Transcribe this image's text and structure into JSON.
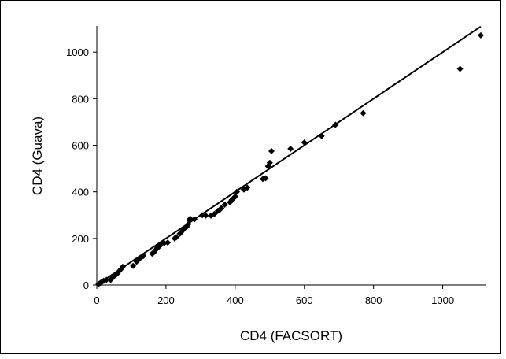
{
  "chart_data": {
    "type": "scatter",
    "title": "",
    "xlabel": "CD4 (FACSORT)",
    "ylabel": "CD4 (Guava)",
    "xlim": [
      0,
      1120
    ],
    "ylim": [
      0,
      1120
    ],
    "x_ticks": [
      0,
      200,
      400,
      600,
      800,
      1000
    ],
    "y_ticks": [
      0,
      200,
      400,
      600,
      800,
      1000
    ],
    "grid": false,
    "legend": "none",
    "series": [
      {
        "kind": "points",
        "color": "#000000",
        "marker": "diamond",
        "points": [
          [
            5,
            4
          ],
          [
            10,
            9
          ],
          [
            15,
            14
          ],
          [
            20,
            18
          ],
          [
            28,
            22
          ],
          [
            40,
            22
          ],
          [
            45,
            30
          ],
          [
            50,
            38
          ],
          [
            55,
            44
          ],
          [
            60,
            50
          ],
          [
            65,
            60
          ],
          [
            70,
            68
          ],
          [
            75,
            78
          ],
          [
            105,
            82
          ],
          [
            115,
            100
          ],
          [
            120,
            108
          ],
          [
            125,
            115
          ],
          [
            130,
            120
          ],
          [
            135,
            125
          ],
          [
            160,
            135
          ],
          [
            165,
            140
          ],
          [
            170,
            150
          ],
          [
            175,
            160
          ],
          [
            180,
            165
          ],
          [
            185,
            175
          ],
          [
            195,
            180
          ],
          [
            205,
            182
          ],
          [
            225,
            200
          ],
          [
            230,
            205
          ],
          [
            240,
            220
          ],
          [
            245,
            228
          ],
          [
            250,
            240
          ],
          [
            255,
            245
          ],
          [
            260,
            250
          ],
          [
            265,
            262
          ],
          [
            268,
            278
          ],
          [
            270,
            285
          ],
          [
            282,
            282
          ],
          [
            305,
            300
          ],
          [
            315,
            298
          ],
          [
            330,
            298
          ],
          [
            340,
            305
          ],
          [
            350,
            318
          ],
          [
            355,
            322
          ],
          [
            360,
            330
          ],
          [
            370,
            345
          ],
          [
            385,
            355
          ],
          [
            390,
            365
          ],
          [
            395,
            372
          ],
          [
            400,
            380
          ],
          [
            405,
            400
          ],
          [
            425,
            410
          ],
          [
            435,
            418
          ],
          [
            480,
            455
          ],
          [
            488,
            458
          ],
          [
            495,
            510
          ],
          [
            500,
            525
          ],
          [
            505,
            575
          ],
          [
            560,
            585
          ],
          [
            600,
            612
          ],
          [
            650,
            640
          ],
          [
            690,
            688
          ],
          [
            770,
            738
          ],
          [
            1050,
            928
          ],
          [
            1110,
            1072
          ]
        ]
      },
      {
        "kind": "trend",
        "color": "#000000",
        "points": [
          [
            0,
            0
          ],
          [
            1110,
            1110
          ]
        ]
      }
    ]
  }
}
